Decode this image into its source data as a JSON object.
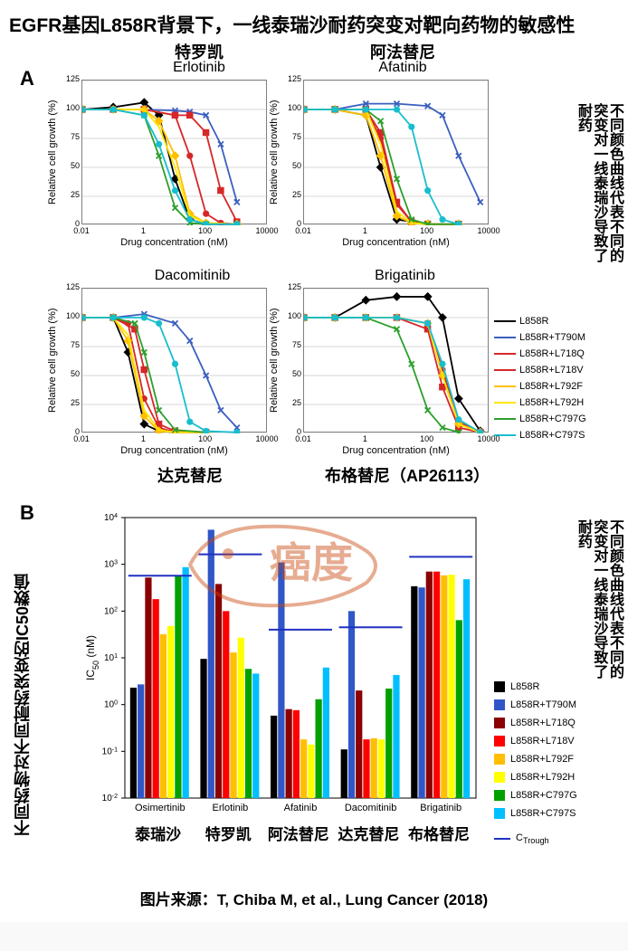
{
  "title_main": "EGFR基因L858R背景下，一线泰瑞沙耐药突变对靶向药物的敏感性",
  "panel_A_label": "A",
  "panel_B_label": "B",
  "side_note_A": "不同颜色曲线代表不同的突变对一线泰瑞沙导致了耐药",
  "side_note_B": "不同颜色曲线代表不同的突变对一线泰瑞沙导致了耐药",
  "side_note_left_B": "不同药物对不同耐药突变的IC50数值",
  "footer_source": "图片来源：T, Chiba M, et al., Lung Cancer (2018)",
  "axis_y_label": "Relative cell growth (%)",
  "axis_x_label": "Drug concentration (nM)",
  "y_ticks_A": [
    0,
    25,
    50,
    75,
    100,
    125
  ],
  "x_ticks_A": [
    0.01,
    0.1,
    1,
    10,
    100,
    10000
  ],
  "x_tick_labels_A": [
    "0.01",
    "",
    "1",
    "",
    "100",
    "10000"
  ],
  "series_legend": [
    {
      "label": "L858R",
      "color": "#000000",
      "marker": "diamond"
    },
    {
      "label": "L858R+T790M",
      "color": "#3b5fbf",
      "marker": "cross"
    },
    {
      "label": "L858R+L718Q",
      "color": "#d62728",
      "marker": "square"
    },
    {
      "label": "L858R+L718V",
      "color": "#d62728",
      "marker": "circle"
    },
    {
      "label": "L858R+L792F",
      "color": "#ffbf00",
      "marker": "diamond"
    },
    {
      "label": "L858R+L792H",
      "color": "#ffe600",
      "marker": "none"
    },
    {
      "label": "L858R+C797G",
      "color": "#2ca02c",
      "marker": "cross"
    },
    {
      "label": "L858R+C797S",
      "color": "#17becf",
      "marker": "circle"
    }
  ],
  "drugs_A": [
    {
      "cn": "特罗凯",
      "en": "Erlotinib",
      "pos": "TL",
      "curves": {
        "L858R": [
          [
            0.01,
            100
          ],
          [
            0.1,
            102
          ],
          [
            1,
            106
          ],
          [
            3,
            95
          ],
          [
            10,
            40
          ],
          [
            30,
            5
          ],
          [
            100,
            1
          ],
          [
            1000,
            1
          ]
        ],
        "L858R+T790M": [
          [
            0.01,
            100
          ],
          [
            0.1,
            100
          ],
          [
            1,
            100
          ],
          [
            10,
            99
          ],
          [
            30,
            98
          ],
          [
            100,
            95
          ],
          [
            300,
            70
          ],
          [
            1000,
            20
          ]
        ],
        "L858R+L718Q": [
          [
            0.01,
            100
          ],
          [
            0.1,
            100
          ],
          [
            1,
            100
          ],
          [
            10,
            95
          ],
          [
            30,
            95
          ],
          [
            100,
            80
          ],
          [
            300,
            30
          ],
          [
            1000,
            3
          ]
        ],
        "L858R+L718V": [
          [
            0.01,
            100
          ],
          [
            0.1,
            100
          ],
          [
            1,
            100
          ],
          [
            10,
            95
          ],
          [
            30,
            60
          ],
          [
            100,
            10
          ],
          [
            300,
            2
          ],
          [
            1000,
            1
          ]
        ],
        "L858R+L792F": [
          [
            0.01,
            100
          ],
          [
            0.1,
            100
          ],
          [
            1,
            100
          ],
          [
            3,
            90
          ],
          [
            10,
            60
          ],
          [
            30,
            10
          ],
          [
            100,
            2
          ],
          [
            1000,
            1
          ]
        ],
        "L858R+L792H": [
          [
            0.01,
            100
          ],
          [
            0.1,
            100
          ],
          [
            1,
            100
          ],
          [
            3,
            85
          ],
          [
            10,
            50
          ],
          [
            30,
            8
          ],
          [
            100,
            2
          ],
          [
            1000,
            1
          ]
        ],
        "L858R+C797G": [
          [
            0.01,
            100
          ],
          [
            0.1,
            100
          ],
          [
            1,
            95
          ],
          [
            3,
            60
          ],
          [
            10,
            15
          ],
          [
            30,
            2
          ],
          [
            100,
            1
          ],
          [
            1000,
            1
          ]
        ],
        "L858R+C797S": [
          [
            0.01,
            100
          ],
          [
            0.1,
            100
          ],
          [
            1,
            95
          ],
          [
            3,
            70
          ],
          [
            10,
            30
          ],
          [
            30,
            5
          ],
          [
            100,
            1
          ],
          [
            1000,
            1
          ]
        ]
      }
    },
    {
      "cn": "阿法替尼",
      "en": "Afatinib",
      "pos": "TR",
      "curves": {
        "L858R": [
          [
            0.01,
            100
          ],
          [
            0.1,
            100
          ],
          [
            1,
            95
          ],
          [
            3,
            50
          ],
          [
            10,
            5
          ],
          [
            100,
            1
          ],
          [
            1000,
            1
          ]
        ],
        "L858R+T790M": [
          [
            0.01,
            100
          ],
          [
            0.1,
            100
          ],
          [
            1,
            105
          ],
          [
            10,
            105
          ],
          [
            100,
            103
          ],
          [
            300,
            95
          ],
          [
            1000,
            60
          ],
          [
            5000,
            20
          ]
        ],
        "L858R+L718Q": [
          [
            0.01,
            100
          ],
          [
            0.1,
            100
          ],
          [
            1,
            100
          ],
          [
            3,
            80
          ],
          [
            10,
            20
          ],
          [
            30,
            3
          ],
          [
            100,
            1
          ],
          [
            1000,
            1
          ]
        ],
        "L858R+L718V": [
          [
            0.01,
            100
          ],
          [
            0.1,
            100
          ],
          [
            1,
            100
          ],
          [
            3,
            75
          ],
          [
            10,
            18
          ],
          [
            30,
            3
          ],
          [
            100,
            1
          ],
          [
            1000,
            1
          ]
        ],
        "L858R+L792F": [
          [
            0.01,
            100
          ],
          [
            0.1,
            100
          ],
          [
            1,
            95
          ],
          [
            3,
            60
          ],
          [
            10,
            8
          ],
          [
            30,
            2
          ],
          [
            100,
            1
          ],
          [
            1000,
            1
          ]
        ],
        "L858R+L792H": [
          [
            0.01,
            100
          ],
          [
            0.1,
            100
          ],
          [
            1,
            100
          ],
          [
            3,
            70
          ],
          [
            10,
            12
          ],
          [
            30,
            2
          ],
          [
            100,
            1
          ],
          [
            1000,
            1
          ]
        ],
        "L858R+C797G": [
          [
            0.01,
            100
          ],
          [
            0.1,
            100
          ],
          [
            1,
            100
          ],
          [
            3,
            90
          ],
          [
            10,
            40
          ],
          [
            30,
            5
          ],
          [
            100,
            1
          ],
          [
            1000,
            1
          ]
        ],
        "L858R+C797S": [
          [
            0.01,
            100
          ],
          [
            0.1,
            100
          ],
          [
            1,
            100
          ],
          [
            10,
            100
          ],
          [
            30,
            85
          ],
          [
            100,
            30
          ],
          [
            300,
            5
          ],
          [
            1000,
            1
          ]
        ]
      }
    },
    {
      "cn_below": "达克替尼",
      "en": "Dacomitinib",
      "pos": "BL",
      "curves": {
        "L858R": [
          [
            0.01,
            100
          ],
          [
            0.1,
            100
          ],
          [
            0.3,
            70
          ],
          [
            1,
            8
          ],
          [
            3,
            2
          ],
          [
            10,
            1
          ],
          [
            100,
            1
          ]
        ],
        "L858R+T790M": [
          [
            0.01,
            100
          ],
          [
            0.1,
            100
          ],
          [
            1,
            103
          ],
          [
            10,
            95
          ],
          [
            30,
            80
          ],
          [
            100,
            50
          ],
          [
            300,
            20
          ],
          [
            1000,
            5
          ]
        ],
        "L858R+L718Q": [
          [
            0.01,
            100
          ],
          [
            0.1,
            100
          ],
          [
            0.5,
            90
          ],
          [
            1,
            55
          ],
          [
            3,
            8
          ],
          [
            10,
            2
          ],
          [
            100,
            1
          ]
        ],
        "L858R+L718V": [
          [
            0.01,
            100
          ],
          [
            0.1,
            100
          ],
          [
            0.3,
            95
          ],
          [
            1,
            30
          ],
          [
            3,
            5
          ],
          [
            10,
            1
          ],
          [
            100,
            1
          ]
        ],
        "L858R+L792F": [
          [
            0.01,
            100
          ],
          [
            0.1,
            100
          ],
          [
            0.3,
            80
          ],
          [
            1,
            15
          ],
          [
            3,
            2
          ],
          [
            10,
            1
          ],
          [
            100,
            1
          ]
        ],
        "L858R+L792H": [
          [
            0.01,
            100
          ],
          [
            0.1,
            100
          ],
          [
            0.3,
            85
          ],
          [
            1,
            20
          ],
          [
            3,
            3
          ],
          [
            10,
            1
          ],
          [
            100,
            1
          ]
        ],
        "L858R+C797G": [
          [
            0.01,
            100
          ],
          [
            0.1,
            100
          ],
          [
            0.5,
            95
          ],
          [
            1,
            70
          ],
          [
            3,
            20
          ],
          [
            10,
            3
          ],
          [
            100,
            1
          ]
        ],
        "L858R+C797S": [
          [
            0.01,
            100
          ],
          [
            0.1,
            100
          ],
          [
            1,
            100
          ],
          [
            3,
            95
          ],
          [
            10,
            60
          ],
          [
            30,
            10
          ],
          [
            100,
            2
          ],
          [
            1000,
            1
          ]
        ]
      }
    },
    {
      "cn_below": "布格替尼（AP26113）",
      "en": "Brigatinib",
      "pos": "BR",
      "curves": {
        "L858R": [
          [
            0.01,
            100
          ],
          [
            0.1,
            100
          ],
          [
            1,
            115
          ],
          [
            10,
            118
          ],
          [
            100,
            118
          ],
          [
            300,
            100
          ],
          [
            1000,
            30
          ],
          [
            5000,
            2
          ]
        ],
        "L858R+T790M": [
          [
            0.01,
            100
          ],
          [
            0.1,
            100
          ],
          [
            1,
            100
          ],
          [
            10,
            100
          ],
          [
            100,
            95
          ],
          [
            300,
            50
          ],
          [
            1000,
            8
          ],
          [
            5000,
            1
          ]
        ],
        "L858R+L718Q": [
          [
            0.01,
            100
          ],
          [
            0.1,
            100
          ],
          [
            1,
            100
          ],
          [
            10,
            100
          ],
          [
            100,
            90
          ],
          [
            300,
            40
          ],
          [
            1000,
            5
          ],
          [
            5000,
            1
          ]
        ],
        "L858R+L718V": [
          [
            0.01,
            100
          ],
          [
            0.1,
            100
          ],
          [
            1,
            100
          ],
          [
            10,
            100
          ],
          [
            100,
            95
          ],
          [
            300,
            55
          ],
          [
            1000,
            10
          ],
          [
            5000,
            1
          ]
        ],
        "L858R+L792F": [
          [
            0.01,
            100
          ],
          [
            0.1,
            100
          ],
          [
            1,
            100
          ],
          [
            10,
            100
          ],
          [
            100,
            95
          ],
          [
            300,
            50
          ],
          [
            1000,
            8
          ],
          [
            5000,
            1
          ]
        ],
        "L858R+L792H": [
          [
            0.01,
            100
          ],
          [
            0.1,
            100
          ],
          [
            1,
            100
          ],
          [
            10,
            100
          ],
          [
            100,
            95
          ],
          [
            300,
            50
          ],
          [
            1000,
            8
          ],
          [
            5000,
            1
          ]
        ],
        "L858R+C797G": [
          [
            0.01,
            100
          ],
          [
            0.1,
            100
          ],
          [
            1,
            100
          ],
          [
            10,
            90
          ],
          [
            30,
            60
          ],
          [
            100,
            20
          ],
          [
            300,
            5
          ],
          [
            1000,
            1
          ]
        ],
        "L858R+C797S": [
          [
            0.01,
            100
          ],
          [
            0.1,
            100
          ],
          [
            1,
            100
          ],
          [
            10,
            100
          ],
          [
            100,
            95
          ],
          [
            300,
            60
          ],
          [
            1000,
            12
          ],
          [
            5000,
            1
          ]
        ]
      }
    }
  ],
  "chart_B": {
    "type": "bar",
    "y_label": "IC50 (nM)",
    "y_scale": "log",
    "y_ticks": [
      0.01,
      0.1,
      1,
      10,
      100,
      1000,
      10000
    ],
    "y_tick_labels": [
      "10-2",
      "10-1",
      "100",
      "101",
      "102",
      "103",
      "104"
    ],
    "drugs": [
      {
        "en": "Osimertinib",
        "cn": "泰瑞沙"
      },
      {
        "en": "Erlotinib",
        "cn": "特罗凯"
      },
      {
        "en": "Afatinib",
        "cn": "阿法替尼"
      },
      {
        "en": "Dacomitinib",
        "cn": "达克替尼"
      },
      {
        "en": "Brigatinib",
        "cn": "布格替尼"
      }
    ],
    "series": [
      {
        "key": "L858R",
        "color": "#000000",
        "values": [
          2.3,
          9.5,
          0.58,
          0.11,
          340
        ]
      },
      {
        "key": "L858R+T790M",
        "color": "#3056c8",
        "values": [
          2.7,
          5500,
          1100,
          100,
          320
        ]
      },
      {
        "key": "L858R+L718Q",
        "color": "#8b0000",
        "values": [
          520,
          380,
          0.8,
          2.0,
          700
        ]
      },
      {
        "key": "L858R+L718V",
        "color": "#ff0000",
        "values": [
          180,
          100,
          0.76,
          0.18,
          700
        ]
      },
      {
        "key": "L858R+L792F",
        "color": "#ffbf00",
        "values": [
          32,
          13,
          0.18,
          0.19,
          580
        ]
      },
      {
        "key": "L858R+L792H",
        "color": "#ffff00",
        "values": [
          48,
          27,
          0.14,
          0.18,
          600
        ]
      },
      {
        "key": "L858R+C797G",
        "color": "#00a000",
        "values": [
          580,
          5.8,
          1.3,
          2.2,
          64
        ]
      },
      {
        "key": "L858R+C797S",
        "color": "#00bfff",
        "values": [
          870,
          4.6,
          6.2,
          4.3,
          480
        ]
      }
    ],
    "ctrough_label": "CTrough",
    "ctrough_color": "#2030c0",
    "ctrough_values": [
      570,
      1640,
      40,
      45,
      1450
    ]
  },
  "colors": {
    "grid": "#b0b0b0",
    "axis": "#000000",
    "bg": "#ffffff"
  }
}
